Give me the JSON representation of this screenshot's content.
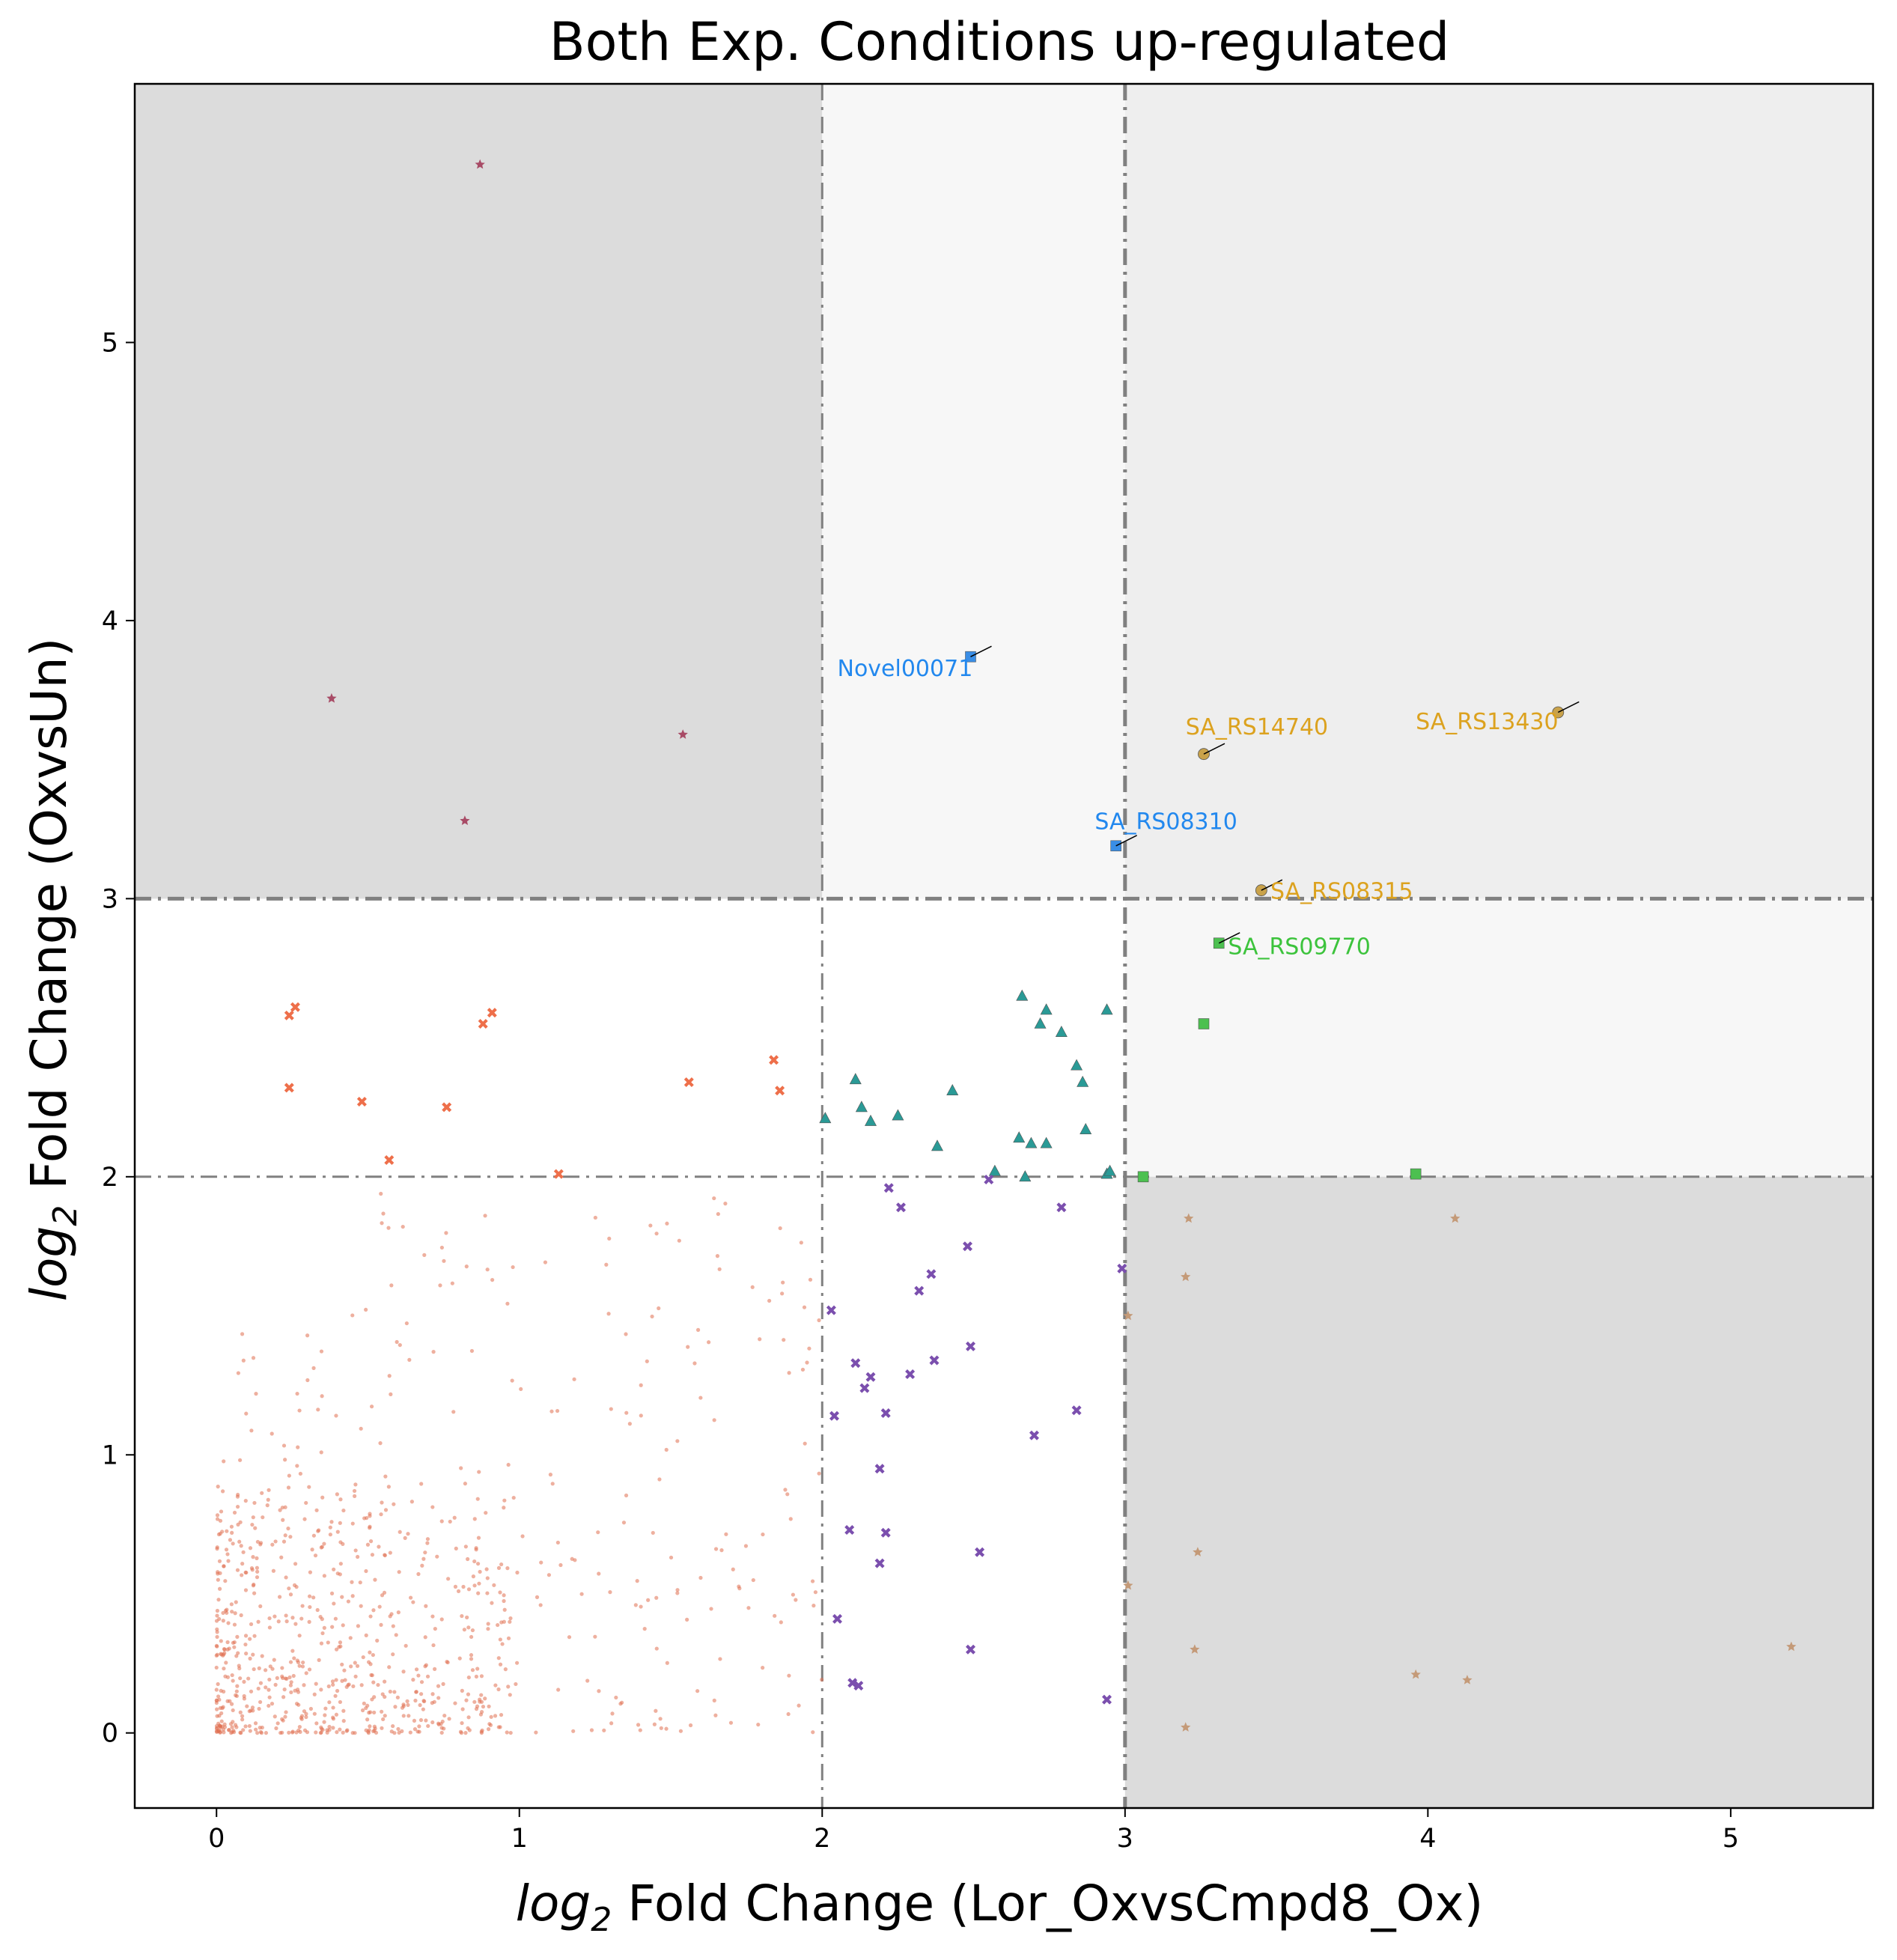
{
  "chart_data": {
    "type": "scatter",
    "title": "Both Exp. Conditions up-regulated",
    "xlabel_prefix": "log",
    "xlabel_sub": "2",
    "xlabel_rest": " Fold Change (Lor_OxvsCmpd8_Ox)",
    "ylabel_prefix": "log",
    "ylabel_sub": "2",
    "ylabel_rest": " Fold Change (OxvsUn)",
    "xlim": [
      -0.27,
      5.47
    ],
    "ylim": [
      -0.27,
      5.93
    ],
    "xticks": [
      0,
      1,
      2,
      3,
      4,
      5
    ],
    "yticks": [
      0,
      1,
      2,
      3,
      4,
      5
    ],
    "grid": false,
    "thresholds": {
      "x": [
        2,
        3
      ],
      "y": [
        2,
        3
      ]
    },
    "colors": {
      "region_dark": "#dcdcdc",
      "region_mid": "#eeeeee",
      "region_light": "#f7f7f7",
      "threshold_line": "#808080",
      "background_points": "#e07050",
      "orange_cross": "#ee6f4a",
      "teal_triangle": "#2a9a96",
      "purple_cross": "#7b4fae",
      "maroon_star": "#a84b66",
      "tan_star": "#c49a78",
      "blue_square": "#3a8ee6",
      "gold_circle": "#c9a24a",
      "green_square": "#4cc050",
      "label_blue": "#2288ee",
      "label_gold": "#dca21f",
      "label_green": "#3cc33c"
    },
    "series": [
      {
        "marker": "x",
        "color": "#ee6f4a",
        "points": [
          [
            0.24,
            2.58
          ],
          [
            0.26,
            2.61
          ],
          [
            0.24,
            2.32
          ],
          [
            0.48,
            2.27
          ],
          [
            0.57,
            2.06
          ],
          [
            0.76,
            2.25
          ],
          [
            0.88,
            2.55
          ],
          [
            0.91,
            2.59
          ],
          [
            1.13,
            2.01
          ],
          [
            1.56,
            2.34
          ],
          [
            1.84,
            2.42
          ],
          [
            1.86,
            2.31
          ]
        ]
      },
      {
        "marker": "triangle",
        "color": "#2a9a96",
        "points": [
          [
            2.01,
            2.21
          ],
          [
            2.11,
            2.35
          ],
          [
            2.13,
            2.25
          ],
          [
            2.16,
            2.2
          ],
          [
            2.25,
            2.22
          ],
          [
            2.38,
            2.11
          ],
          [
            2.43,
            2.31
          ],
          [
            2.57,
            2.02
          ],
          [
            2.65,
            2.14
          ],
          [
            2.66,
            2.65
          ],
          [
            2.67,
            2.0
          ],
          [
            2.69,
            2.12
          ],
          [
            2.72,
            2.55
          ],
          [
            2.74,
            2.6
          ],
          [
            2.74,
            2.12
          ],
          [
            2.79,
            2.52
          ],
          [
            2.84,
            2.4
          ],
          [
            2.86,
            2.34
          ],
          [
            2.87,
            2.17
          ],
          [
            2.94,
            2.6
          ],
          [
            2.94,
            2.01
          ],
          [
            2.95,
            2.02
          ]
        ]
      },
      {
        "marker": "x",
        "color": "#7b4fae",
        "points": [
          [
            2.03,
            1.52
          ],
          [
            2.04,
            1.14
          ],
          [
            2.05,
            0.41
          ],
          [
            2.09,
            0.73
          ],
          [
            2.1,
            0.18
          ],
          [
            2.11,
            1.33
          ],
          [
            2.12,
            0.17
          ],
          [
            2.14,
            1.24
          ],
          [
            2.16,
            1.28
          ],
          [
            2.19,
            0.95
          ],
          [
            2.19,
            0.61
          ],
          [
            2.21,
            1.15
          ],
          [
            2.21,
            0.72
          ],
          [
            2.22,
            1.96
          ],
          [
            2.26,
            1.89
          ],
          [
            2.29,
            1.29
          ],
          [
            2.32,
            1.59
          ],
          [
            2.36,
            1.65
          ],
          [
            2.37,
            1.34
          ],
          [
            2.48,
            1.75
          ],
          [
            2.49,
            1.39
          ],
          [
            2.49,
            0.3
          ],
          [
            2.52,
            0.65
          ],
          [
            2.55,
            1.99
          ],
          [
            2.7,
            1.07
          ],
          [
            2.79,
            1.89
          ],
          [
            2.84,
            1.16
          ],
          [
            2.94,
            0.12
          ],
          [
            2.99,
            1.67
          ]
        ]
      },
      {
        "marker": "star",
        "color": "#a84b66",
        "points": [
          [
            0.87,
            5.64
          ],
          [
            0.38,
            3.72
          ],
          [
            1.54,
            3.59
          ],
          [
            0.82,
            3.28
          ]
        ]
      },
      {
        "marker": "star",
        "color": "#c49a78",
        "points": [
          [
            3.21,
            1.85
          ],
          [
            3.2,
            1.64
          ],
          [
            3.01,
            1.5
          ],
          [
            3.01,
            0.53
          ],
          [
            3.24,
            0.65
          ],
          [
            3.23,
            0.3
          ],
          [
            3.2,
            0.02
          ],
          [
            3.96,
            0.21
          ],
          [
            4.09,
            1.85
          ],
          [
            4.13,
            0.19
          ],
          [
            5.2,
            0.31
          ]
        ]
      },
      {
        "marker": "square",
        "color": "#3a8ee6",
        "points": [
          [
            2.49,
            3.87
          ],
          [
            2.97,
            3.19
          ]
        ]
      },
      {
        "marker": "circle",
        "color": "#c9a24a",
        "points": [
          [
            3.26,
            3.52
          ],
          [
            4.43,
            3.67
          ],
          [
            3.45,
            3.03
          ]
        ]
      },
      {
        "marker": "square",
        "color": "#4cc050",
        "points": [
          [
            3.31,
            2.84
          ],
          [
            3.26,
            2.55
          ],
          [
            3.06,
            2.0
          ],
          [
            3.96,
            2.01
          ]
        ]
      }
    ],
    "annotations": [
      {
        "text": "Novel00071",
        "color": "#2288ee",
        "x": 2.05,
        "y": 3.8,
        "point": [
          2.49,
          3.87
        ]
      },
      {
        "text": "SA_RS14740",
        "color": "#dca21f",
        "x": 3.2,
        "y": 3.59,
        "point": [
          3.26,
          3.52
        ]
      },
      {
        "text": "SA_RS13430",
        "color": "#dca21f",
        "x": 3.96,
        "y": 3.61,
        "point": [
          4.43,
          3.67
        ]
      },
      {
        "text": "SA_RS08310",
        "color": "#2288ee",
        "x": 2.9,
        "y": 3.25,
        "point": [
          2.97,
          3.19
        ]
      },
      {
        "text": "SA_RS08315",
        "color": "#dca21f",
        "x": 3.48,
        "y": 3.0,
        "point": [
          3.45,
          3.03
        ]
      },
      {
        "text": "SA_RS09770",
        "color": "#3cc33c",
        "x": 3.34,
        "y": 2.8,
        "point": [
          3.31,
          2.84
        ]
      }
    ]
  }
}
